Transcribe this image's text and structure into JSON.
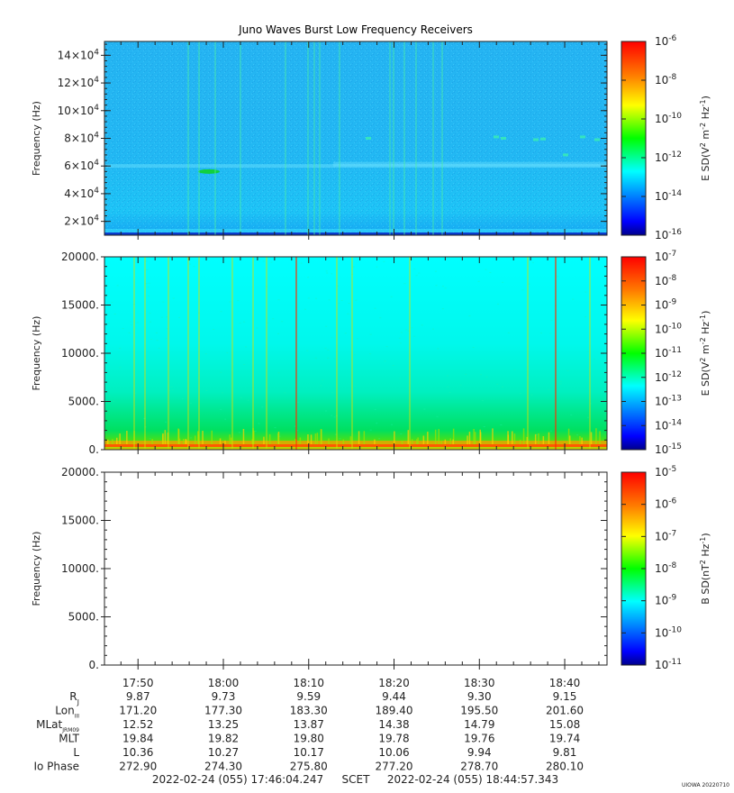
{
  "title": "Juno Waves Burst Low Frequency Receivers",
  "watermark": "UIOWA 20220710",
  "colors": {
    "background": "#ffffff",
    "axis": "#222222",
    "spectrogram_bg1": "#23b6f2",
    "spectrogram_bg2": "#00ffff",
    "noise_band": "#ff5a00",
    "colorbar_high": "#ff0000",
    "colorbar_mid": "#00ff00",
    "colorbar_low": "#0000b4"
  },
  "chart_data": [
    {
      "type": "heatmap",
      "panel": "top",
      "ylabel": "Frequency (Hz)",
      "yticks": [
        {
          "mant": "2×10",
          "exp": "4",
          "value": 20000
        },
        {
          "mant": "4×10",
          "exp": "4",
          "value": 40000
        },
        {
          "mant": "6×10",
          "exp": "4",
          "value": 60000
        },
        {
          "mant": "8×10",
          "exp": "4",
          "value": 80000
        },
        {
          "mant": "10×10",
          "exp": "4",
          "value": 100000
        },
        {
          "mant": "12×10",
          "exp": "4",
          "value": 120000
        },
        {
          "mant": "14×10",
          "exp": "4",
          "value": 140000
        }
      ],
      "ylim": [
        10000,
        150000
      ],
      "xlabels": [
        "17:50",
        "18:00",
        "18:10",
        "18:20",
        "18:30",
        "18:40"
      ],
      "colorbar": {
        "label": "E SD (V2 m-2 Hz-1)",
        "label_parts": {
          "base": "E SD(V",
          "e1": "2",
          "mid": " m",
          "e2": "-2",
          "hz": " Hz",
          "e3": "-1",
          "end": ")"
        },
        "scale": "log",
        "tick_mant": "10",
        "tick_exps": [
          "-6",
          "-8",
          "-10",
          "-12",
          "-14",
          "-16"
        ],
        "range": [
          1e-16,
          1e-06
        ]
      }
    },
    {
      "type": "heatmap",
      "panel": "middle",
      "ylabel": "Frequency (Hz)",
      "yticks": [
        {
          "label": "0.",
          "value": 0
        },
        {
          "label": "5000.",
          "value": 5000
        },
        {
          "label": "10000.",
          "value": 10000
        },
        {
          "label": "15000.",
          "value": 15000
        },
        {
          "label": "20000.",
          "value": 20000
        }
      ],
      "ylim": [
        0,
        20000
      ],
      "xlabels": [
        "17:50",
        "18:00",
        "18:10",
        "18:20",
        "18:30",
        "18:40"
      ],
      "colorbar": {
        "label": "E SD (V2 m-2 Hz-1)",
        "label_parts": {
          "base": "E SD(V",
          "e1": "2",
          "mid": " m",
          "e2": "-2",
          "hz": " Hz",
          "e3": "-1",
          "end": ")"
        },
        "scale": "log",
        "tick_mant": "10",
        "tick_exps": [
          "-7",
          "-8",
          "-9",
          "-10",
          "-11",
          "-12",
          "-13",
          "-14",
          "-15"
        ],
        "range": [
          1e-15,
          1e-07
        ]
      }
    },
    {
      "type": "heatmap",
      "panel": "bottom",
      "ylabel": "Frequency (Hz)",
      "yticks": [
        {
          "label": "0.",
          "value": 0
        },
        {
          "label": "5000.",
          "value": 5000
        },
        {
          "label": "10000.",
          "value": 10000
        },
        {
          "label": "15000.",
          "value": 15000
        },
        {
          "label": "20000.",
          "value": 20000
        }
      ],
      "ylim": [
        0,
        20000
      ],
      "xlabels": [
        "17:50",
        "18:00",
        "18:10",
        "18:20",
        "18:30",
        "18:40"
      ],
      "colorbar": {
        "label": "B SD (nT2 Hz-1)",
        "label_parts": {
          "base": "B SD(nT",
          "e1": "2",
          "mid": "",
          "e2": "",
          "hz": " Hz",
          "e3": "-1",
          "end": ")"
        },
        "scale": "log",
        "tick_mant": "10",
        "tick_exps": [
          "-5",
          "-6",
          "-7",
          "-8",
          "-9",
          "-10",
          "-11"
        ],
        "range": [
          1e-11,
          1e-05
        ]
      },
      "empty": true
    }
  ],
  "ephemeris": {
    "times": [
      "17:50",
      "18:00",
      "18:10",
      "18:20",
      "18:30",
      "18:40"
    ],
    "rows": [
      {
        "label": "R",
        "sub": "J",
        "values": [
          "9.87",
          "9.73",
          "9.59",
          "9.44",
          "9.30",
          "9.15"
        ]
      },
      {
        "label": "Lon",
        "sub": "III",
        "values": [
          "171.20",
          "177.30",
          "183.30",
          "189.40",
          "195.50",
          "201.60"
        ]
      },
      {
        "label": "MLat",
        "sub": "JRM09",
        "values": [
          "12.52",
          "13.25",
          "13.87",
          "14.38",
          "14.79",
          "15.08"
        ]
      },
      {
        "label": "MLT",
        "sub": "",
        "values": [
          "19.84",
          "19.82",
          "19.80",
          "19.78",
          "19.76",
          "19.74"
        ]
      },
      {
        "label": "L",
        "sub": "",
        "values": [
          "10.36",
          "10.27",
          "10.17",
          "10.06",
          "9.94",
          "9.81"
        ]
      },
      {
        "label": "Io Phase",
        "sub": "",
        "values": [
          "272.90",
          "274.30",
          "275.80",
          "277.20",
          "278.70",
          "280.10"
        ]
      }
    ]
  },
  "footer": {
    "start": "2022-02-24 (055) 17:46:04.247",
    "mid": "SCET",
    "end": "2022-02-24 (055) 18:44:57.343"
  }
}
